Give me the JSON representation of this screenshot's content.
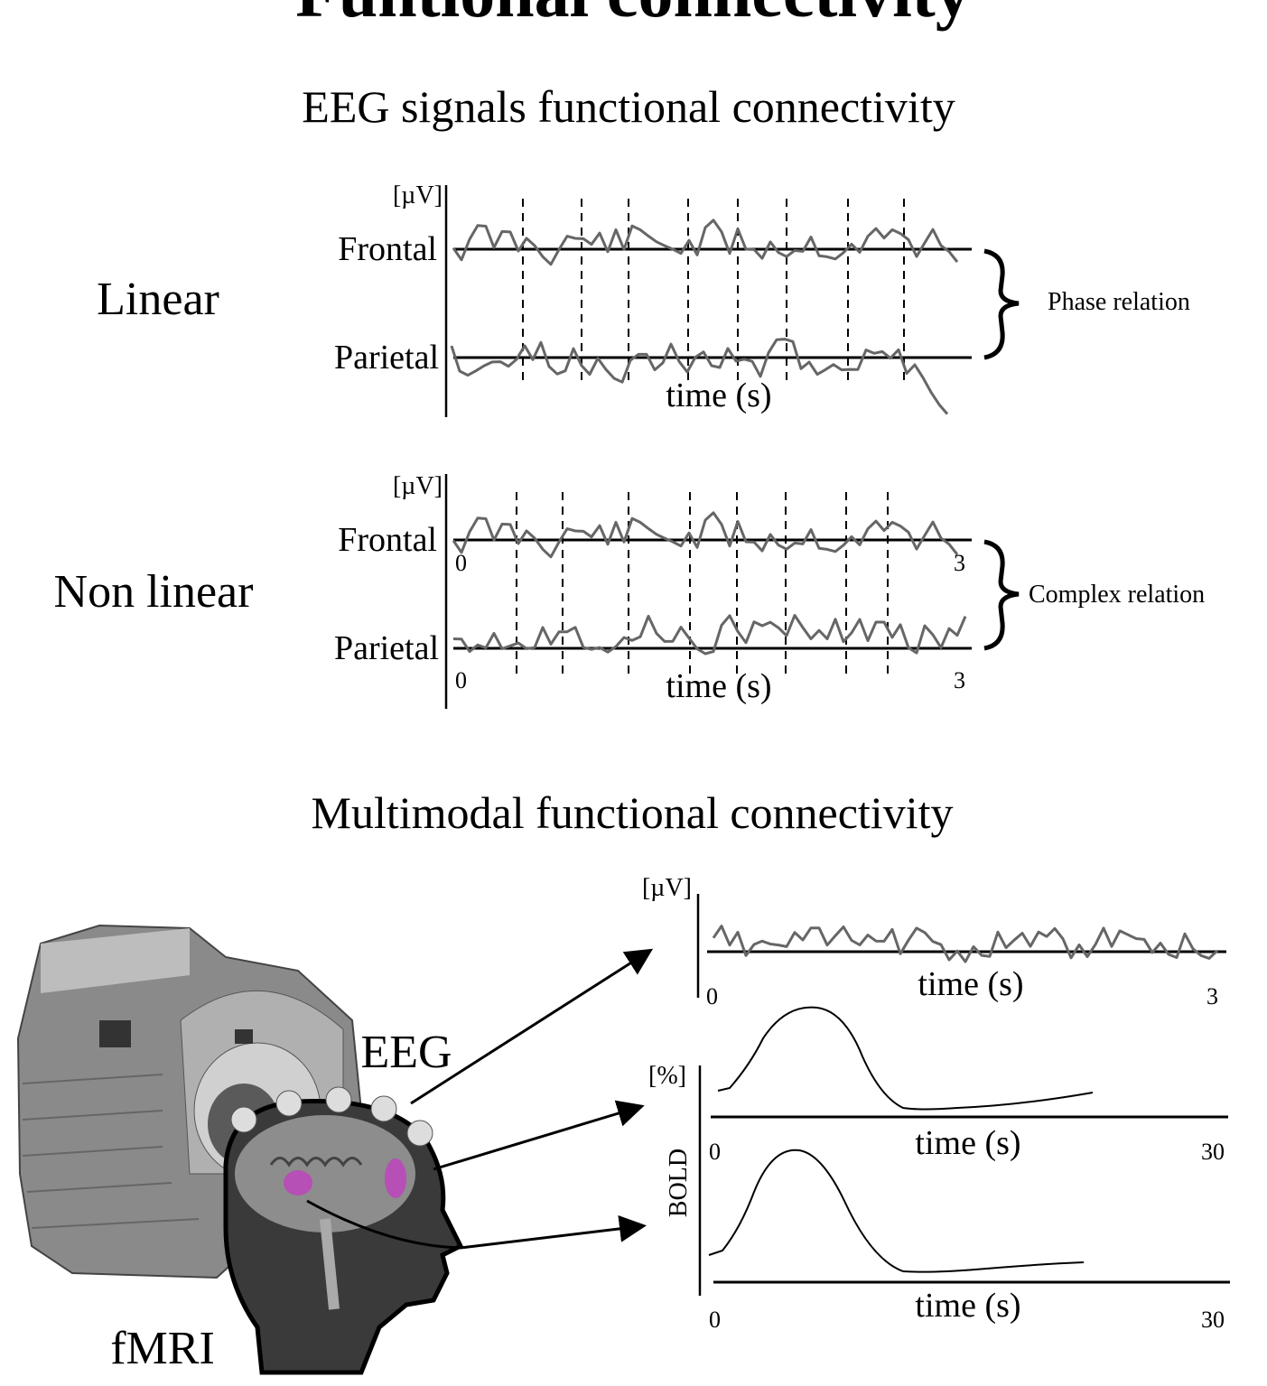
{
  "title": "Funtional connectivity",
  "eeg_section": {
    "title": "EEG signals functional connectivity",
    "linear": {
      "label": "Linear",
      "unit": "[µV]",
      "channels": [
        "Frontal",
        "Parietal"
      ],
      "xlabel": "time (s)",
      "relation": "Phase relation"
    },
    "nonlinear": {
      "label": "Non linear",
      "unit": "[µV]",
      "channels": [
        "Frontal",
        "Parietal"
      ],
      "xlabel": "time (s)",
      "x_start": "0",
      "x_end": "3",
      "relation": "Complex relation"
    }
  },
  "multimodal_section": {
    "title": "Multimodal functional connectivity",
    "eeg_label": "EEG",
    "fmri_label": "fMRI",
    "eeg_plot": {
      "unit": "[µV]",
      "xlabel": "time (s)",
      "x_start": "0",
      "x_end": "3"
    },
    "bold_plots": {
      "unit": "[%]",
      "ylabel": "BOLD",
      "xlabel": "time (s)",
      "x_start": "0",
      "x_end": "30"
    },
    "highlight_color": "#c040c0"
  }
}
